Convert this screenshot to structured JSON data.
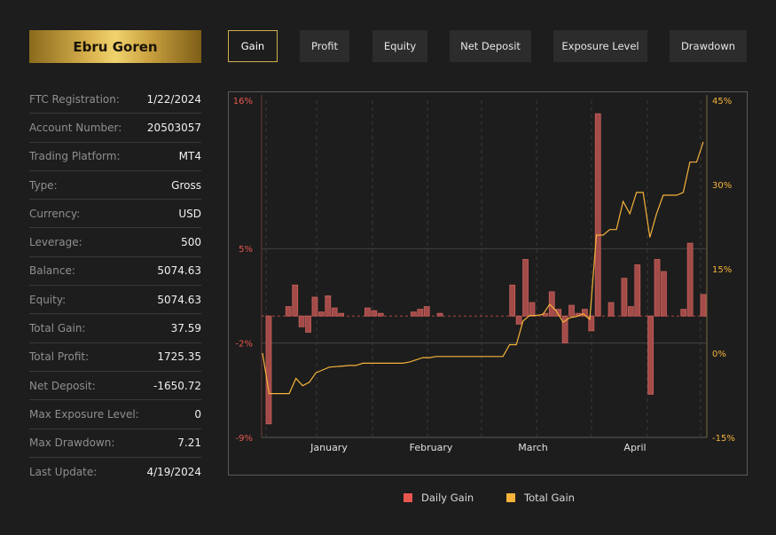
{
  "account": {
    "name": "Ebru Goren"
  },
  "tabs": [
    {
      "label": "Gain",
      "active": true
    },
    {
      "label": "Profit",
      "active": false
    },
    {
      "label": "Equity",
      "active": false
    },
    {
      "label": "Net Deposit",
      "active": false
    },
    {
      "label": "Exposure Level",
      "active": false
    },
    {
      "label": "Drawdown",
      "active": false
    }
  ],
  "info": [
    {
      "label": "FTC Registration:",
      "value": "1/22/2024"
    },
    {
      "label": "Account Number:",
      "value": "20503057"
    },
    {
      "label": "Trading Platform:",
      "value": "MT4"
    },
    {
      "label": "Type:",
      "value": "Gross"
    },
    {
      "label": "Currency:",
      "value": "USD"
    },
    {
      "label": "Leverage:",
      "value": "500"
    },
    {
      "label": "Balance:",
      "value": "5074.63"
    },
    {
      "label": "Equity:",
      "value": "5074.63"
    },
    {
      "label": "Total Gain:",
      "value": "37.59"
    },
    {
      "label": "Total Profit:",
      "value": "1725.35"
    },
    {
      "label": "Net Deposit:",
      "value": "-1650.72"
    },
    {
      "label": "Max Exposure Level:",
      "value": "0"
    },
    {
      "label": "Max Drawdown:",
      "value": "7.21"
    },
    {
      "label": "Last Update:",
      "value": "4/19/2024"
    }
  ],
  "colors": {
    "daily_gain": "#e8574f",
    "total_gain": "#f5b33a",
    "accent": "#d4b04c"
  },
  "chart_data": {
    "type": "bar+line",
    "x_ticks": [
      "January",
      "February",
      "March",
      "April"
    ],
    "y_left": {
      "min": -9,
      "max": 16,
      "ticks": [
        "16%",
        "5%",
        "-2%",
        "-9%"
      ]
    },
    "y_right": {
      "min": -15,
      "max": 45,
      "ticks": [
        "45%",
        "30%",
        "15%",
        "0%",
        "-15%"
      ]
    },
    "legend": [
      "Daily Gain",
      "Total Gain"
    ],
    "legend_position": "bottom",
    "series": [
      {
        "name": "Daily Gain",
        "type": "bar",
        "axis": "left",
        "values": [
          -8.0,
          0,
          0,
          0.7,
          2.3,
          -0.8,
          -1.2,
          1.4,
          0.3,
          1.5,
          0.6,
          0.2,
          0,
          0,
          0,
          0.6,
          0.4,
          0.2,
          0,
          0,
          0,
          0,
          0.3,
          0.5,
          0.7,
          0,
          0.2,
          0,
          0,
          0,
          0,
          0,
          0,
          0,
          0,
          0,
          0,
          2.3,
          -0.6,
          4.2,
          1.0,
          0,
          0.2,
          1.8,
          0.5,
          -2.0,
          0.8,
          0.2,
          0.5,
          -1.1,
          15.0,
          0,
          1.0,
          0,
          2.8,
          0.7,
          3.8,
          0,
          -5.8,
          4.2,
          3.3,
          0,
          0,
          0.5,
          5.4,
          0,
          1.6
        ]
      },
      {
        "name": "Total Gain",
        "type": "line",
        "axis": "right",
        "values": [
          0,
          -7.2,
          -7.2,
          -7.2,
          -7.2,
          -4.5,
          -5.8,
          -5.2,
          -3.5,
          -3.0,
          -2.5,
          -2.4,
          -2.3,
          -2.2,
          -2.2,
          -1.8,
          -1.8,
          -1.8,
          -1.8,
          -1.8,
          -1.8,
          -1.8,
          -1.6,
          -1.2,
          -0.8,
          -0.8,
          -0.6,
          -0.6,
          -0.6,
          -0.6,
          -0.6,
          -0.6,
          -0.6,
          -0.6,
          -0.6,
          -0.6,
          -0.6,
          1.5,
          1.5,
          5.7,
          6.7,
          6.7,
          6.9,
          8.7,
          7.5,
          5.5,
          6.3,
          6.5,
          7.0,
          6.0,
          21.0,
          21.0,
          22.0,
          22.0,
          27.0,
          24.8,
          28.6,
          28.6,
          20.6,
          24.8,
          28.1,
          28.1,
          28.1,
          28.6,
          34.0,
          34.0,
          37.6
        ]
      }
    ]
  }
}
